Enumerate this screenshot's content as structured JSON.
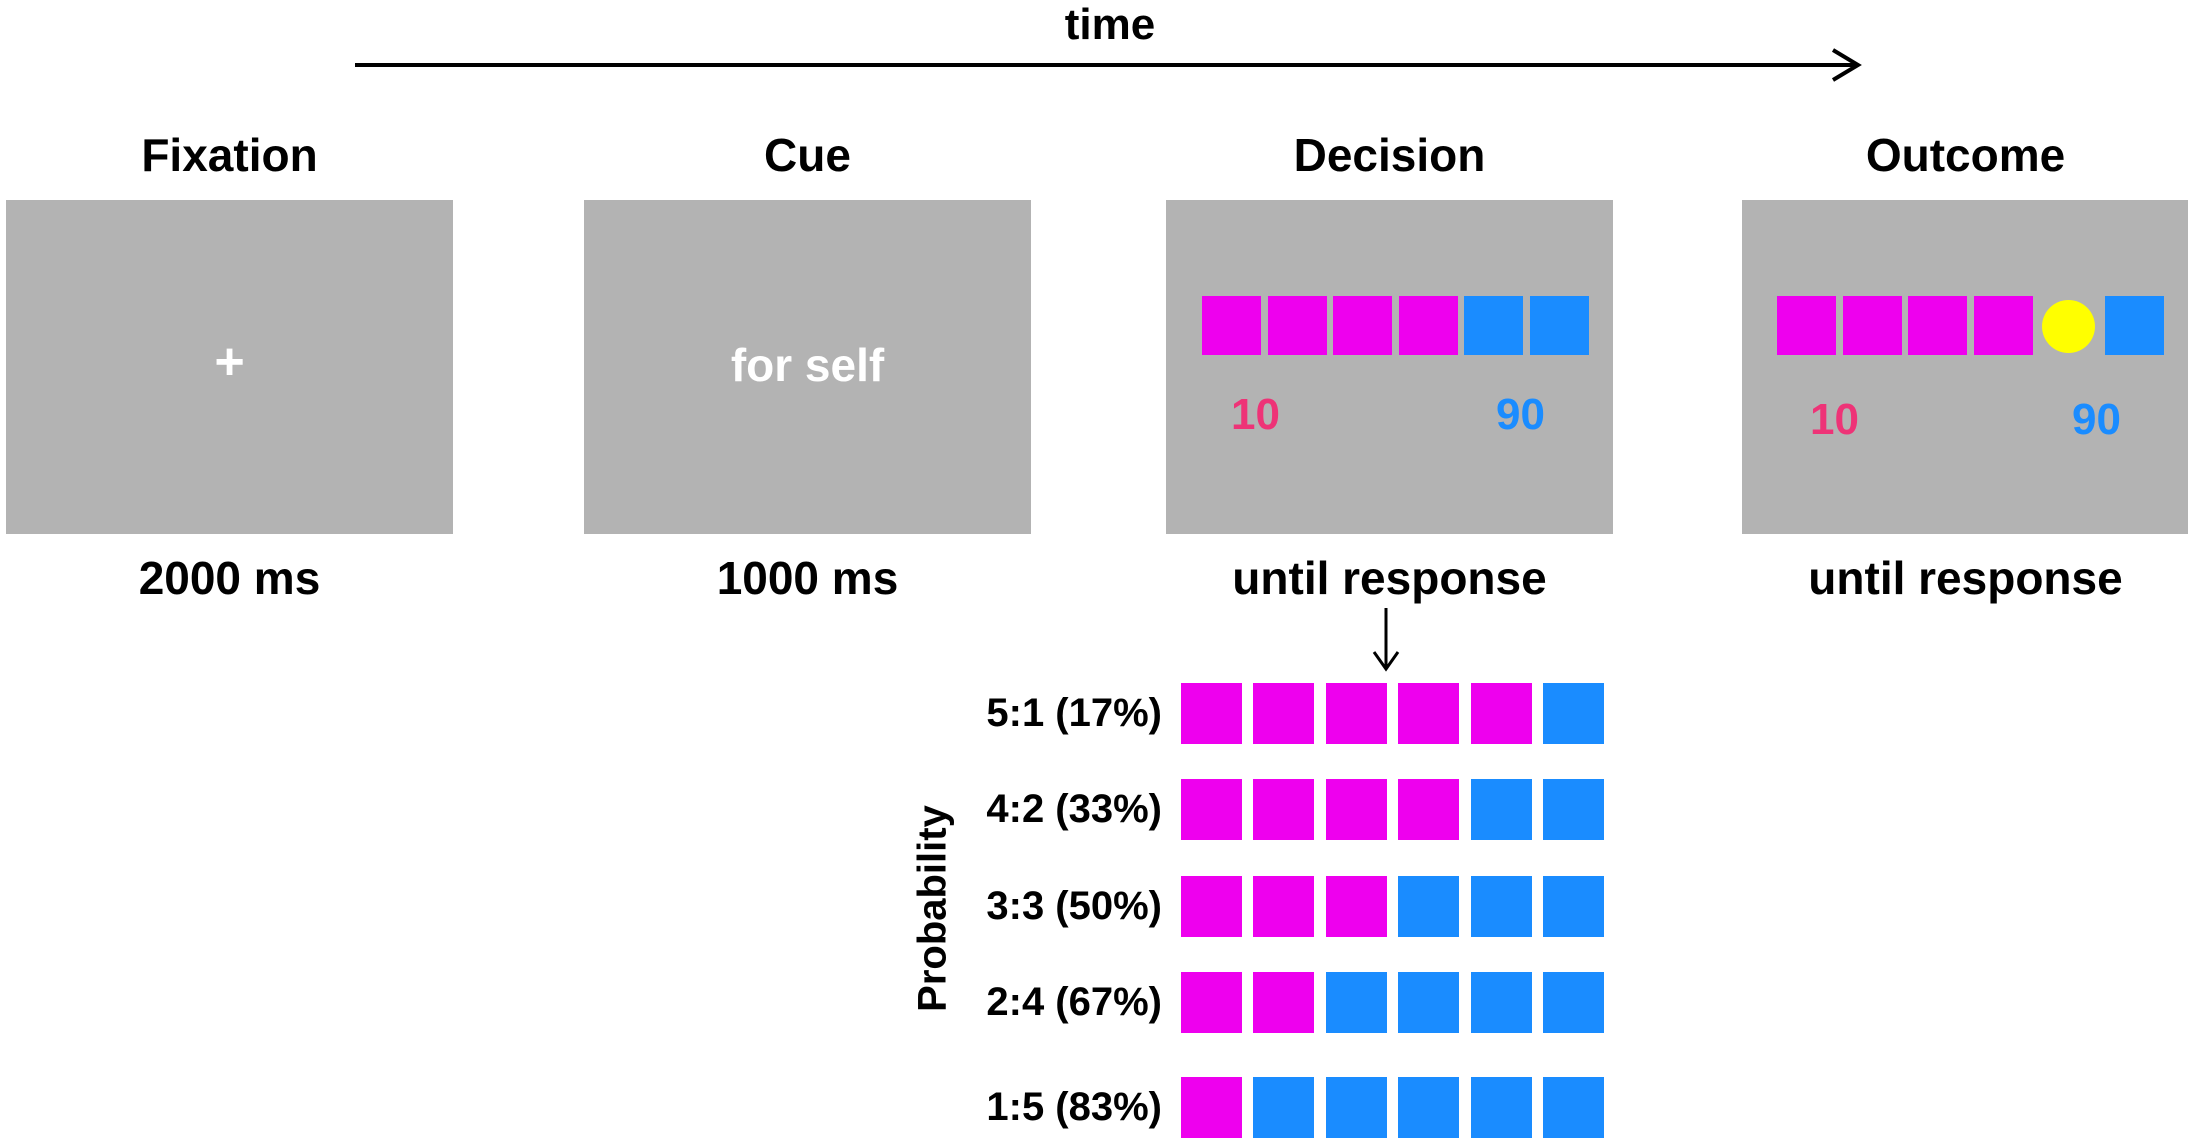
{
  "timeline": {
    "label": "time"
  },
  "stages": [
    {
      "title": "Fixation",
      "duration": "2000 ms",
      "content": "+"
    },
    {
      "title": "Cue",
      "duration": "1000 ms",
      "content": "for self"
    },
    {
      "title": "Decision",
      "duration": "until response",
      "left_value": "10",
      "right_value": "90"
    },
    {
      "title": "Outcome",
      "duration": "until response",
      "left_value": "10",
      "right_value": "90"
    }
  ],
  "decision_pattern": [
    "magenta",
    "magenta",
    "magenta",
    "magenta",
    "blue",
    "blue"
  ],
  "outcome_pattern": [
    "magenta",
    "magenta",
    "magenta",
    "magenta",
    "yellow-circle",
    "blue"
  ],
  "probability": {
    "axis_label": "Probability",
    "rows": [
      {
        "label": "5:1 (17%)",
        "magenta": 5,
        "blue": 1
      },
      {
        "label": "4:2 (33%)",
        "magenta": 4,
        "blue": 2
      },
      {
        "label": "3:3 (50%)",
        "magenta": 3,
        "blue": 3
      },
      {
        "label": "2:4 (67%)",
        "magenta": 2,
        "blue": 4
      },
      {
        "label": "1:5 (83%)",
        "magenta": 1,
        "blue": 5
      }
    ]
  },
  "colors": {
    "panel": "#b3b3b3",
    "magenta": "#ee00ee",
    "blue": "#1a8cff",
    "yellow": "#ffff00",
    "value_left": "#ee3377",
    "value_right": "#1a8cff"
  }
}
